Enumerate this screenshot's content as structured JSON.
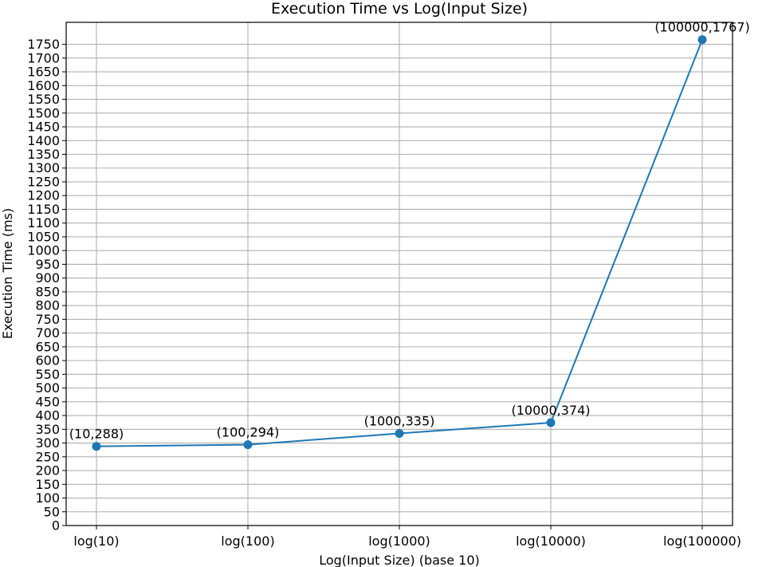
{
  "chart_data": {
    "type": "line",
    "title": "Execution Time vs Log(Input Size)",
    "xlabel": "Log(Input Size) (base 10)",
    "ylabel": "Execution Time (ms)",
    "categories": [
      "log(10)",
      "log(100)",
      "log(1000)",
      "log(10000)",
      "log(100000)"
    ],
    "x": [
      10,
      100,
      1000,
      10000,
      100000
    ],
    "series": [
      {
        "values": [
          288,
          294,
          335,
          374,
          1767
        ],
        "color": "#1f77b4"
      }
    ],
    "point_labels": [
      "(10,288)",
      "(100,294)",
      "(1000,335)",
      "(10000,374)",
      "(100000,1767)"
    ],
    "ylim": [
      0,
      1830
    ],
    "yticks": [
      0,
      50,
      100,
      150,
      200,
      250,
      300,
      350,
      400,
      450,
      500,
      550,
      600,
      650,
      700,
      750,
      800,
      850,
      900,
      950,
      1000,
      1050,
      1100,
      1150,
      1200,
      1250,
      1300,
      1350,
      1400,
      1450,
      1500,
      1550,
      1600,
      1650,
      1700,
      1750
    ],
    "x_scale": "log",
    "grid": true,
    "marker": "circle"
  }
}
